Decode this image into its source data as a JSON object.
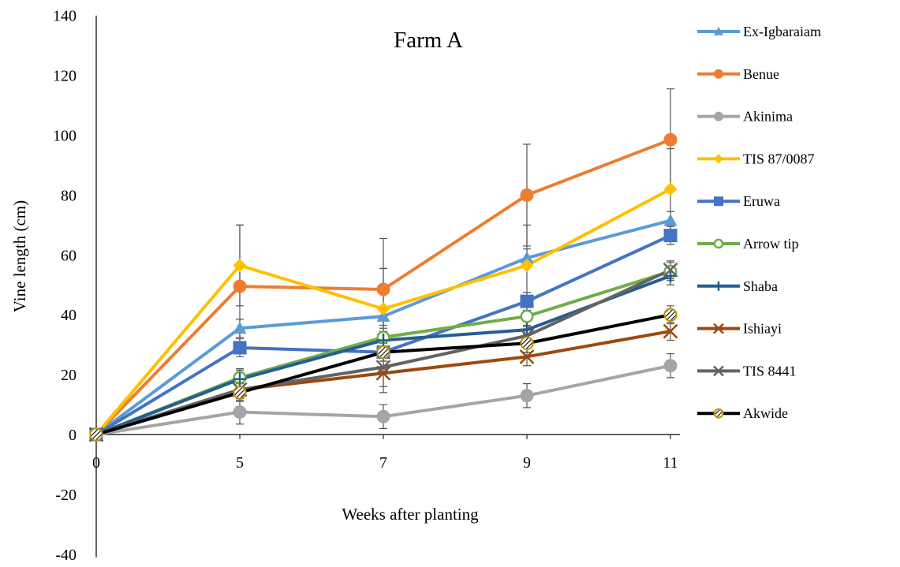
{
  "chart_data": {
    "type": "line",
    "title": "Farm A",
    "xlabel": "Weeks after planting",
    "ylabel": "Vine length (cm)",
    "x": [
      0,
      5,
      7,
      9,
      11
    ],
    "x_tick_labels": [
      "0",
      "5",
      "7",
      "9",
      "11"
    ],
    "ylim": [
      -40,
      140
    ],
    "y_ticks": [
      -40,
      -20,
      0,
      20,
      40,
      60,
      80,
      100,
      120,
      140
    ],
    "grid": false,
    "legend_position": "right",
    "series": [
      {
        "name": "Ex-Igbaraiam",
        "color": "#5B9BD5",
        "marker": "triangle",
        "values": [
          0,
          35.5,
          39.5,
          59,
          71.5
        ],
        "error": [
          0,
          3,
          3,
          3,
          3
        ]
      },
      {
        "name": "Benue",
        "color": "#ED7D31",
        "marker": "circle",
        "values": [
          0,
          49.5,
          48.5,
          80,
          98.5
        ],
        "error": [
          0,
          20.5,
          17,
          17,
          17
        ]
      },
      {
        "name": "Akinima",
        "color": "#A5A5A5",
        "marker": "circle",
        "values": [
          0,
          7.5,
          6,
          13,
          23
        ],
        "error": [
          0,
          4,
          4,
          4,
          4
        ]
      },
      {
        "name": "TIS 87/0087",
        "color": "#FFC000",
        "marker": "diamond",
        "values": [
          0,
          56.5,
          42,
          56.5,
          82
        ],
        "error": [
          0,
          13.5,
          13.5,
          13.5,
          13.5
        ]
      },
      {
        "name": "Eruwa",
        "color": "#4472C4",
        "marker": "square",
        "values": [
          0,
          29,
          27.5,
          44.5,
          66.5
        ],
        "error": [
          0,
          3,
          3,
          3,
          3
        ]
      },
      {
        "name": "Arrow tip",
        "color": "#70AD47",
        "marker": "circle-open",
        "values": [
          0,
          19,
          32.5,
          39.5,
          54.5
        ],
        "error": [
          0,
          3,
          3,
          3,
          3
        ]
      },
      {
        "name": "Shaba",
        "color": "#255E91",
        "marker": "plus",
        "values": [
          0,
          18.5,
          31.5,
          35,
          53
        ],
        "error": [
          0,
          3,
          3,
          3,
          3
        ]
      },
      {
        "name": "Ishiayi",
        "color": "#9E480E",
        "marker": "cross",
        "values": [
          0,
          15,
          20.5,
          26,
          34.5
        ],
        "error": [
          0,
          3,
          6.5,
          3,
          3
        ]
      },
      {
        "name": "TIS 8441",
        "color": "#636363",
        "marker": "cross",
        "values": [
          0,
          15,
          22.5,
          33,
          55
        ],
        "error": [
          0,
          3,
          6.5,
          3,
          3
        ]
      },
      {
        "name": "Akwide",
        "color": "#000000",
        "marker": "circle-hatched",
        "values": [
          0,
          14,
          27.5,
          30.5,
          40
        ],
        "error": [
          0,
          3,
          3,
          3,
          3
        ]
      }
    ]
  }
}
